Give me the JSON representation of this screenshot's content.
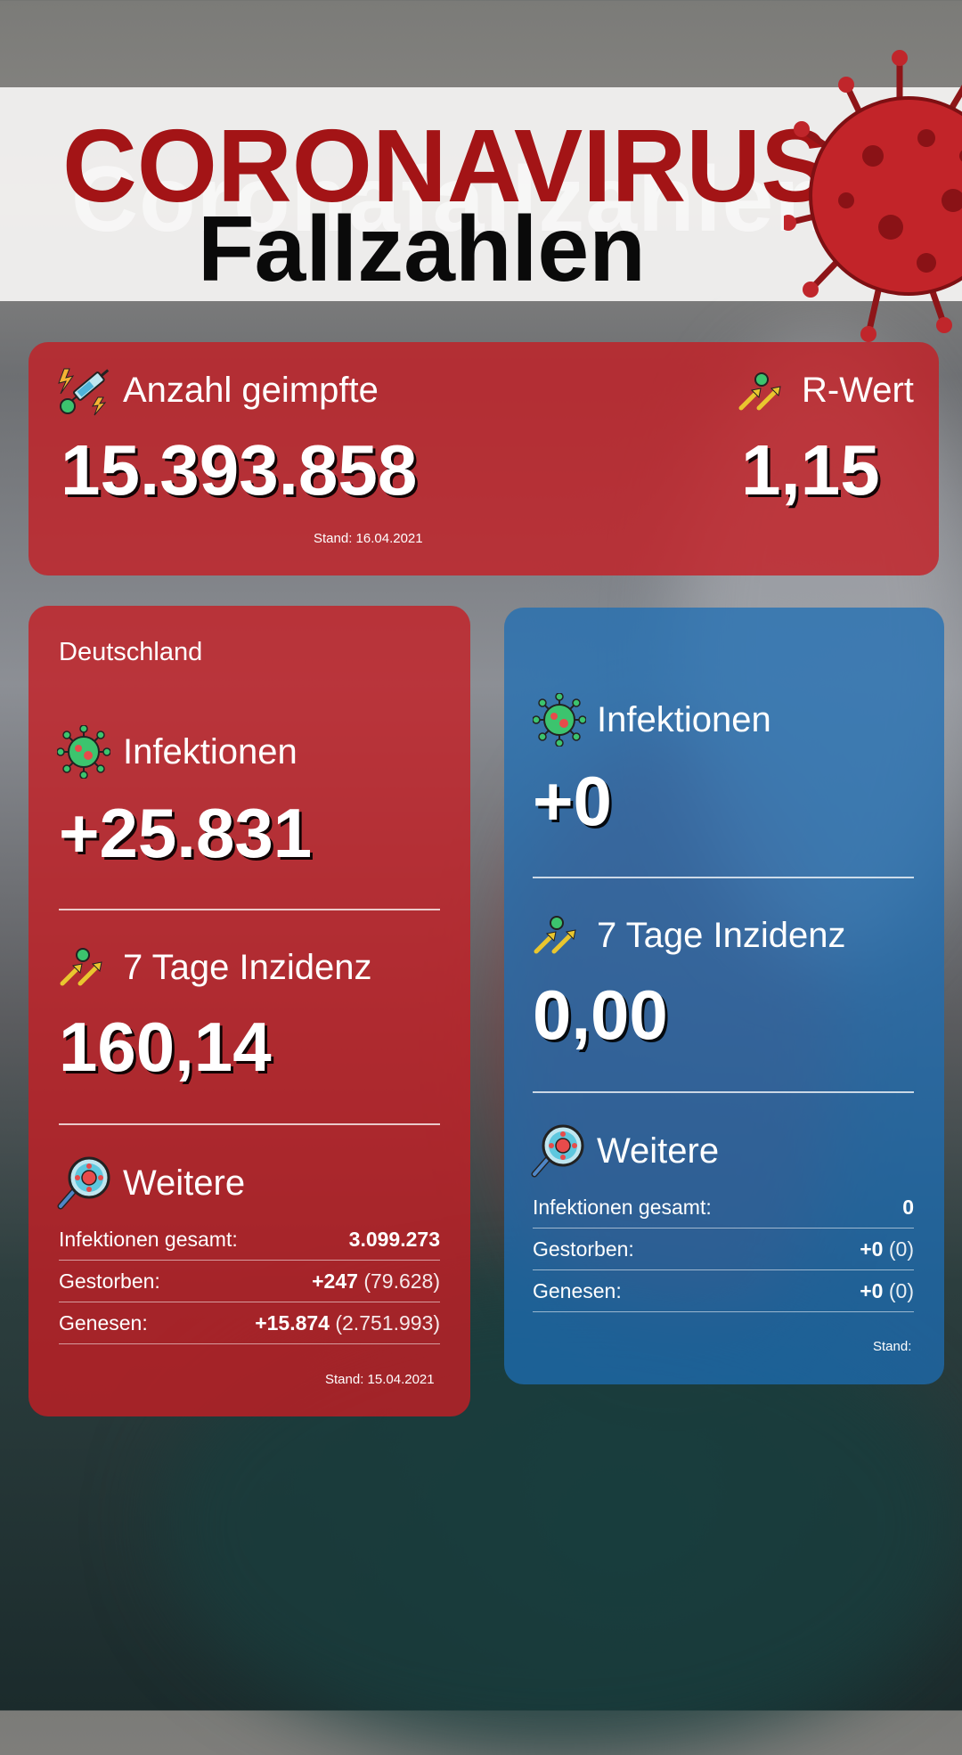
{
  "header": {
    "title_line1": "CORONAVIRUS",
    "title_line2": "Fallzahlen",
    "ghost_text": "Coronafallzahlen"
  },
  "top_card": {
    "vaccinated_label": "Anzahl geimpfte",
    "vaccinated_value": "15.393.858",
    "vaccinated_stand": "Stand: 16.04.2021",
    "r_label": "R-Wert",
    "r_value": "1,15"
  },
  "germany_card": {
    "region": "Deutschland",
    "infections_label": "Infektionen",
    "infections_value": "+25.831",
    "incidence_label": "7 Tage Inzidenz",
    "incidence_value": "160,14",
    "more_label": "Weitere",
    "rows": [
      {
        "label": "Infektionen gesamt:",
        "bold": "3.099.273",
        "extra": ""
      },
      {
        "label": "Gestorben:",
        "bold": "+247",
        "extra": "(79.628)"
      },
      {
        "label": "Genesen:",
        "bold": "+15.874",
        "extra": "(2.751.993)"
      }
    ],
    "stand": "Stand: 15.04.2021"
  },
  "region_card": {
    "infections_label": "Infektionen",
    "infections_value": "+0",
    "incidence_label": "7 Tage Inzidenz",
    "incidence_value": "0,00",
    "more_label": "Weitere",
    "rows": [
      {
        "label": "Infektionen gesamt:",
        "bold": "0",
        "extra": ""
      },
      {
        "label": "Gestorben:",
        "bold": "+0",
        "extra": "(0)"
      },
      {
        "label": "Genesen:",
        "bold": "+0",
        "extra": "(0)"
      }
    ],
    "stand": "Stand:"
  },
  "colors": {
    "red_card": "#c41e24",
    "blue_card": "#1e6eb4",
    "title_red": "#a31416"
  },
  "icons": {
    "vaccine": "syringe-icon",
    "r_value": "trend-arrows-icon",
    "infections": "virus-icon",
    "incidence": "trend-arrows-icon",
    "more": "magnifier-virus-icon"
  }
}
